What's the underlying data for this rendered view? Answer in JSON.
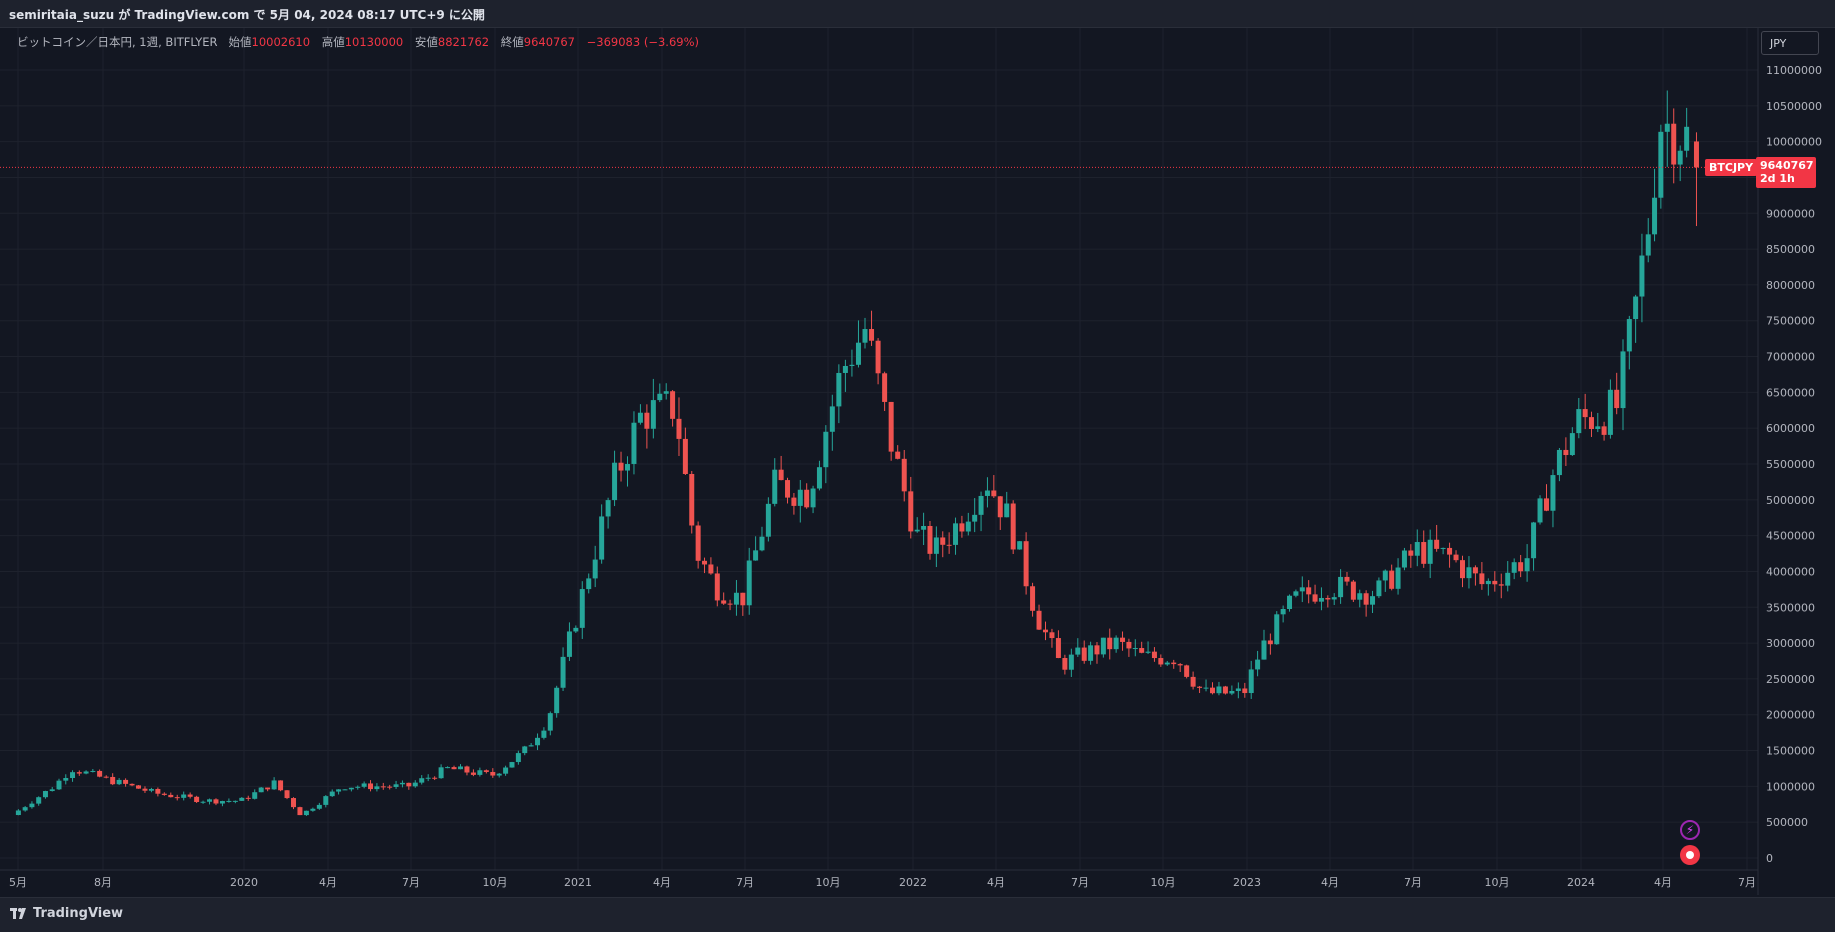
{
  "publish_header": "semiritaia_suzu が TradingView.com で 5月 04, 2024 08:17 UTC+9 に公開",
  "legend": {
    "symbol": "ビットコイン／日本円, 1週, BITFLYER",
    "open_label": "始値",
    "open": "10002610",
    "high_label": "高値",
    "high": "10130000",
    "low_label": "安値",
    "low": "8821762",
    "close_label": "終値",
    "close": "9640767",
    "change": "−369083 (−3.69%)"
  },
  "currency": "JPY",
  "price_badge": {
    "symbol": "BTCJPY",
    "price": "9640767",
    "countdown": "2d 1h"
  },
  "footer_brand": "TradingView",
  "colors": {
    "up": "#26a69a",
    "down": "#ef5350",
    "background": "#131722",
    "grid": "#1e222d"
  },
  "icons": [
    "tradingview-logo-icon",
    "flash-icon",
    "record-icon"
  ],
  "chart_data": {
    "type": "candlestick",
    "title": "ビットコイン／日本円, 1週, BITFLYER",
    "ylim": [
      0,
      11200000
    ],
    "y_ticks": [
      0,
      500000,
      1000000,
      1500000,
      2000000,
      2500000,
      3000000,
      3500000,
      4000000,
      4500000,
      5000000,
      5500000,
      6000000,
      6500000,
      7000000,
      7500000,
      8000000,
      8500000,
      9000000,
      9500000,
      10000000,
      10500000,
      11000000
    ],
    "x_ticks": [
      {
        "label": "5月",
        "t": 0
      },
      {
        "label": "8月",
        "t": 1
      },
      {
        "label": "2020",
        "t": 2
      },
      {
        "label": "4月",
        "t": 3
      },
      {
        "label": "7月",
        "t": 4
      },
      {
        "label": "10月",
        "t": 5
      },
      {
        "label": "2021",
        "t": 6
      },
      {
        "label": "4月",
        "t": 7
      },
      {
        "label": "7月",
        "t": 8
      },
      {
        "label": "10月",
        "t": 9
      },
      {
        "label": "2022",
        "t": 10
      },
      {
        "label": "4月",
        "t": 11
      },
      {
        "label": "7月",
        "t": 12
      },
      {
        "label": "10月",
        "t": 13
      },
      {
        "label": "2023",
        "t": 14
      },
      {
        "label": "4月",
        "t": 15
      },
      {
        "label": "7月",
        "t": 16
      },
      {
        "label": "10月",
        "t": 17
      },
      {
        "label": "2024",
        "t": 18
      },
      {
        "label": "4月",
        "t": 19
      },
      {
        "label": "7月",
        "t": 20
      }
    ],
    "current_price": 9640767,
    "close_path": [
      [
        2019.33,
        600000
      ],
      [
        2019.45,
        1000000
      ],
      [
        2019.5,
        1250000
      ],
      [
        2019.6,
        1100000
      ],
      [
        2019.75,
        900000
      ],
      [
        2019.9,
        800000
      ],
      [
        2020.0,
        800000
      ],
      [
        2020.1,
        1050000
      ],
      [
        2020.18,
        600000
      ],
      [
        2020.3,
        1000000
      ],
      [
        2020.5,
        1000000
      ],
      [
        2020.62,
        1250000
      ],
      [
        2020.75,
        1150000
      ],
      [
        2020.85,
        1500000
      ],
      [
        2020.92,
        1950000
      ],
      [
        2021.0,
        3300000
      ],
      [
        2021.12,
        5300000
      ],
      [
        2021.2,
        6200000
      ],
      [
        2021.3,
        6300000
      ],
      [
        2021.36,
        4300000
      ],
      [
        2021.42,
        3800000
      ],
      [
        2021.5,
        3600000
      ],
      [
        2021.6,
        5200000
      ],
      [
        2021.7,
        5100000
      ],
      [
        2021.8,
        6800000
      ],
      [
        2021.87,
        7400000
      ],
      [
        2021.95,
        5700000
      ],
      [
        2022.02,
        4500000
      ],
      [
        2022.08,
        4300000
      ],
      [
        2022.15,
        4700000
      ],
      [
        2022.23,
        5300000
      ],
      [
        2022.3,
        4700000
      ],
      [
        2022.38,
        3400000
      ],
      [
        2022.45,
        2700000
      ],
      [
        2022.55,
        2900000
      ],
      [
        2022.62,
        3000000
      ],
      [
        2022.7,
        2800000
      ],
      [
        2022.8,
        2800000
      ],
      [
        2022.88,
        2300000
      ],
      [
        2023.0,
        2300000
      ],
      [
        2023.05,
        2900000
      ],
      [
        2023.15,
        3600000
      ],
      [
        2023.25,
        3800000
      ],
      [
        2023.4,
        3700000
      ],
      [
        2023.52,
        4300000
      ],
      [
        2023.62,
        4200000
      ],
      [
        2023.72,
        3800000
      ],
      [
        2023.85,
        4200000
      ],
      [
        2023.92,
        5300000
      ],
      [
        2024.0,
        6100000
      ],
      [
        2024.08,
        6200000
      ],
      [
        2024.12,
        6300000
      ],
      [
        2024.18,
        7800000
      ],
      [
        2024.22,
        9000000
      ],
      [
        2024.25,
        10300000
      ],
      [
        2024.32,
        10100000
      ],
      [
        2024.34,
        10000000
      ]
    ],
    "last_candle": {
      "open": 10002610,
      "high": 10130000,
      "low": 8821762,
      "close": 9640767
    }
  }
}
